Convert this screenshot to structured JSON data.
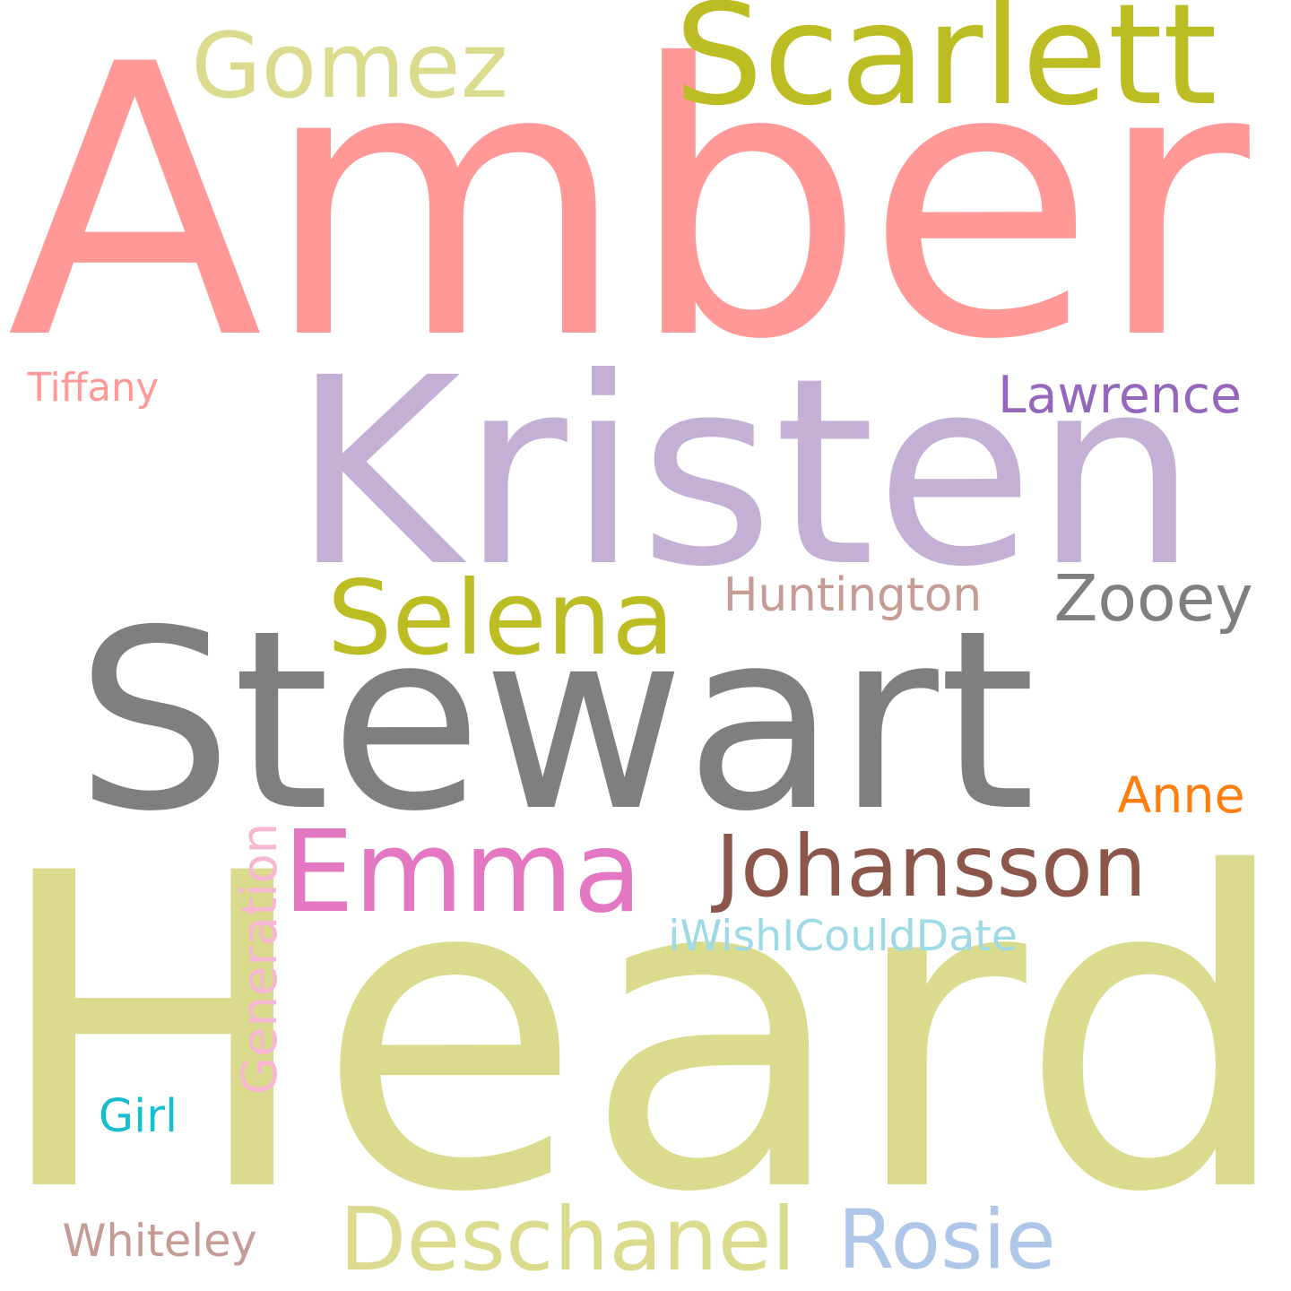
{
  "word_cloud": {
    "words": [
      {
        "id": "amber",
        "text": "Amber",
        "color": "#ff9896"
      },
      {
        "id": "heard",
        "text": "Heard",
        "color": "#dbdb8d"
      },
      {
        "id": "kristen",
        "text": "Kristen",
        "color": "#c5b0d5"
      },
      {
        "id": "stewart",
        "text": "Stewart",
        "color": "#7f7f7f"
      },
      {
        "id": "scarlett",
        "text": "Scarlett",
        "color": "#bcbd22"
      },
      {
        "id": "gomez",
        "text": "Gomez",
        "color": "#dbdb8d"
      },
      {
        "id": "emma",
        "text": "Emma",
        "color": "#e377c2"
      },
      {
        "id": "johansson",
        "text": "Johansson",
        "color": "#8c564b"
      },
      {
        "id": "selena",
        "text": "Selena",
        "color": "#bcbd22"
      },
      {
        "id": "zooey",
        "text": "Zooey",
        "color": "#7f7f7f"
      },
      {
        "id": "deschanel",
        "text": "Deschanel",
        "color": "#dbdb8d"
      },
      {
        "id": "rosie",
        "text": "Rosie",
        "color": "#aec7e8"
      },
      {
        "id": "huntington",
        "text": "Huntington",
        "color": "#c49c94"
      },
      {
        "id": "whiteley",
        "text": "Whiteley",
        "color": "#c49c94"
      },
      {
        "id": "lawrence",
        "text": "Lawrence",
        "color": "#9467bd"
      },
      {
        "id": "iwishicoulddate",
        "text": "iWishICouldDate",
        "color": "#9edae5"
      },
      {
        "id": "generation",
        "text": "Generation",
        "color": "#f7b6d2"
      },
      {
        "id": "anne",
        "text": "Anne",
        "color": "#ff7f0e"
      },
      {
        "id": "tiffany",
        "text": "Tiffany",
        "color": "#ff9896"
      },
      {
        "id": "girl",
        "text": "Girl",
        "color": "#17becf"
      }
    ]
  }
}
